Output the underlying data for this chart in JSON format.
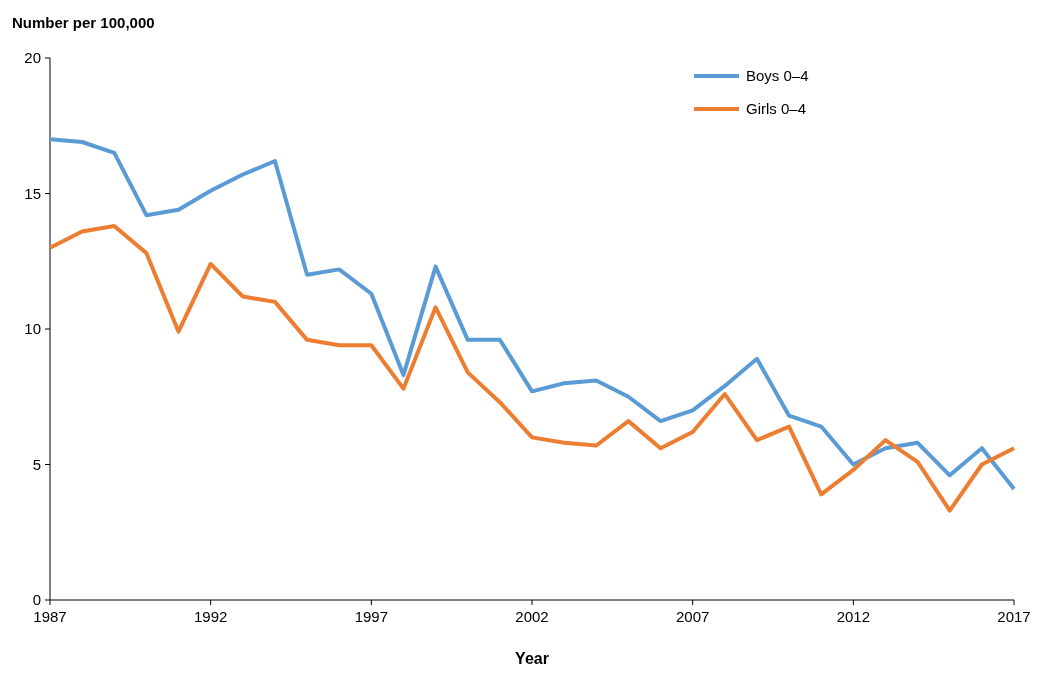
{
  "chart_data": {
    "type": "line",
    "ylabel": "Number per 100,000",
    "xlabel": "Year",
    "x": [
      1987,
      1988,
      1989,
      1990,
      1991,
      1992,
      1993,
      1994,
      1995,
      1996,
      1997,
      1998,
      1999,
      2000,
      2001,
      2002,
      2003,
      2004,
      2005,
      2006,
      2007,
      2008,
      2009,
      2010,
      2011,
      2012,
      2013,
      2014,
      2015,
      2016,
      2017
    ],
    "series": [
      {
        "name": "Boys 0–4",
        "color": "#5b9bd5",
        "values": [
          17.0,
          16.9,
          16.5,
          14.2,
          14.4,
          15.1,
          15.7,
          16.2,
          12.0,
          12.2,
          11.3,
          8.3,
          12.3,
          9.6,
          9.6,
          7.7,
          8.0,
          8.1,
          7.5,
          6.6,
          7.0,
          7.9,
          8.9,
          6.8,
          6.4,
          5.0,
          5.6,
          5.8,
          4.6,
          5.6,
          4.1
        ]
      },
      {
        "name": "Girls 0–4",
        "color": "#ed7d31",
        "values": [
          13.0,
          13.6,
          13.8,
          12.8,
          9.9,
          12.4,
          11.2,
          11.0,
          9.6,
          9.4,
          9.4,
          7.8,
          10.8,
          8.4,
          7.3,
          6.0,
          5.8,
          5.7,
          6.6,
          5.6,
          6.2,
          7.6,
          5.9,
          6.4,
          3.9,
          4.8,
          5.9,
          5.1,
          3.3,
          5.0,
          5.6
        ]
      }
    ],
    "xlim": [
      1987,
      2017
    ],
    "xticks": [
      1987,
      1992,
      1997,
      2002,
      2007,
      2012,
      2017
    ],
    "ylim": [
      0,
      20
    ],
    "yticks": [
      0,
      5,
      10,
      15,
      20
    ],
    "grid": false,
    "legend": "top right",
    "marker": "none",
    "line_style": "solid"
  }
}
